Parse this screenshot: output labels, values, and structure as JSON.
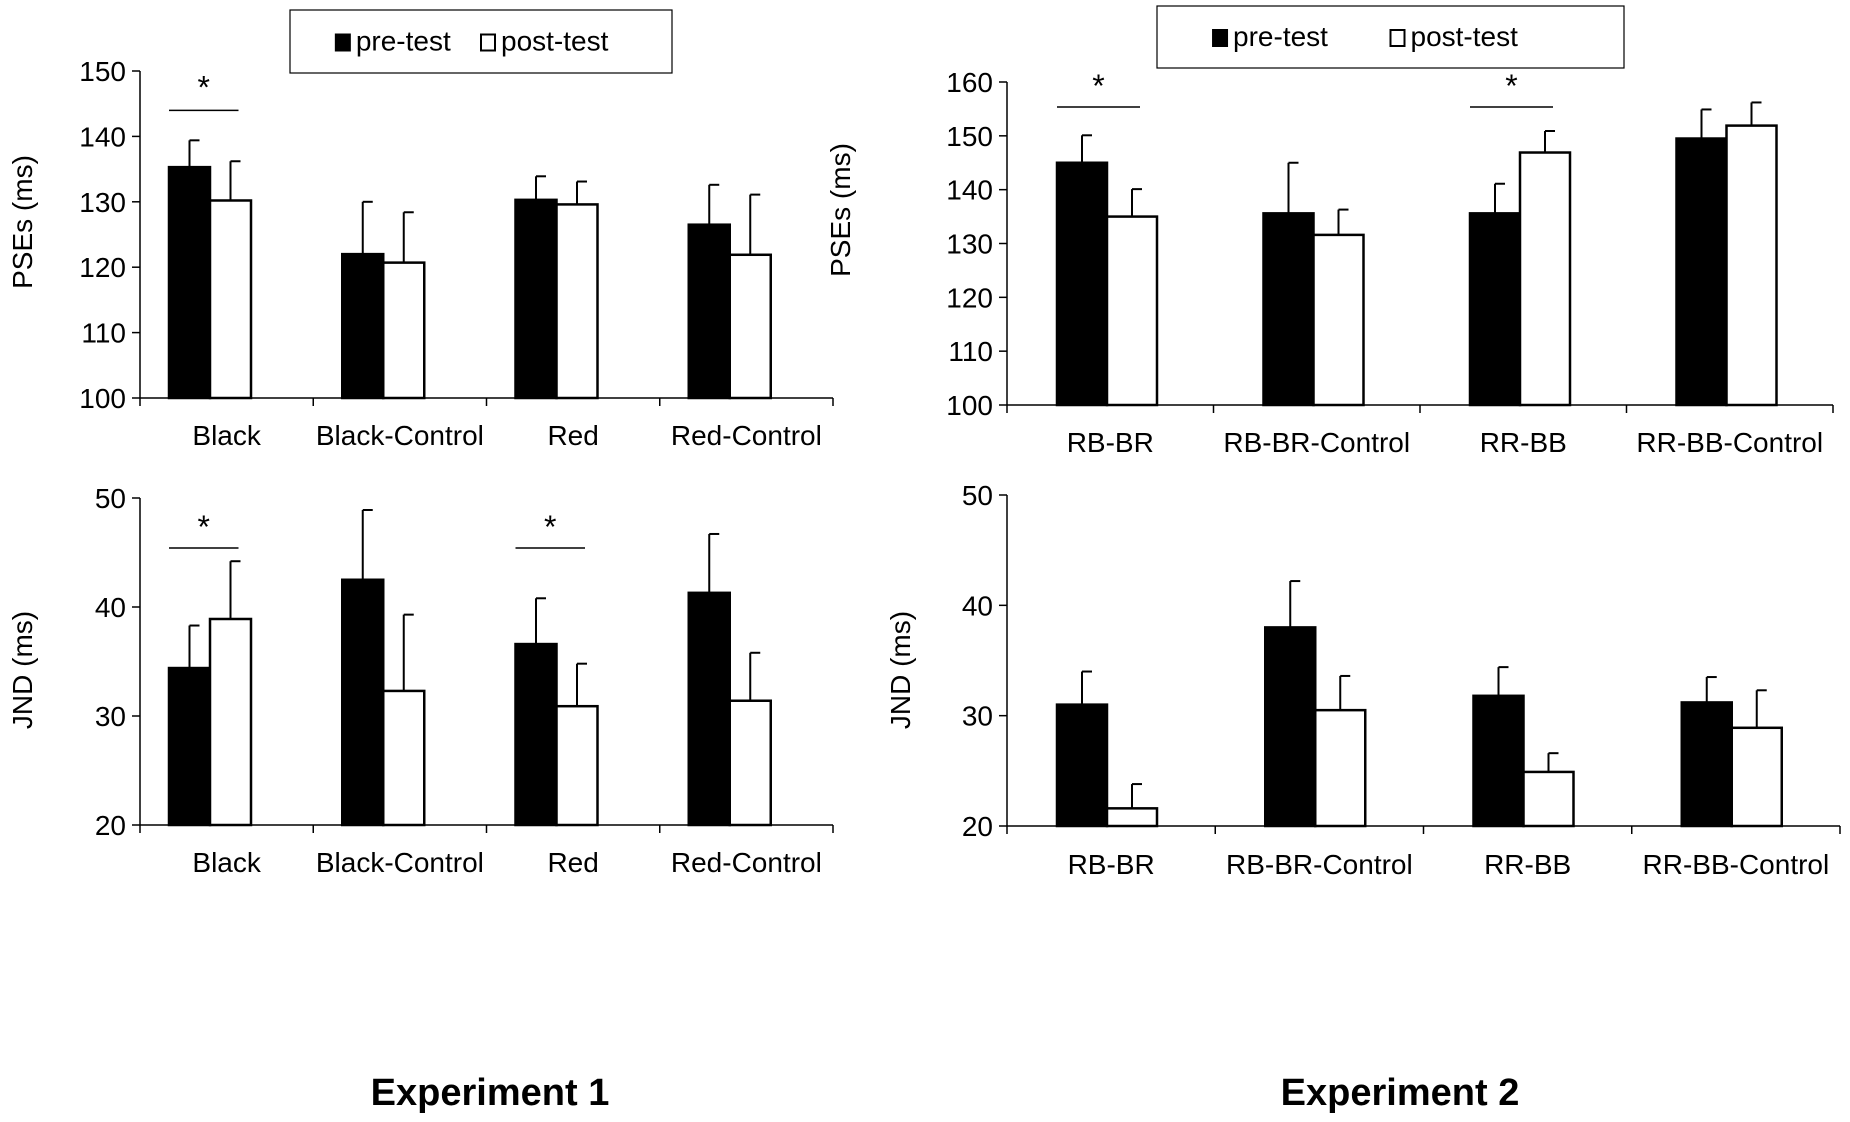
{
  "chart_data": [
    {
      "id": "exp1-pse",
      "type": "bar",
      "ylabel": "PSEs (ms)",
      "ylim": [
        100,
        150
      ],
      "yticks": [
        100,
        110,
        120,
        130,
        140,
        150
      ],
      "categories": [
        "Black",
        "Black-Control",
        "Red",
        "Red-Control"
      ],
      "legend": [
        "pre-test",
        "post-test"
      ],
      "series": [
        {
          "name": "pre-test",
          "values": [
            135.3,
            122.0,
            130.3,
            126.5
          ],
          "errors": [
            4.1,
            8.0,
            3.6,
            6.1
          ]
        },
        {
          "name": "post-test",
          "values": [
            130.2,
            120.7,
            129.6,
            121.9
          ],
          "errors": [
            6.0,
            7.7,
            3.5,
            9.2
          ]
        }
      ],
      "significance": [
        {
          "category": 0,
          "label": "*"
        }
      ]
    },
    {
      "id": "exp2-pse",
      "type": "bar",
      "ylabel": "PSEs (ms)",
      "ylim": [
        100,
        160
      ],
      "yticks": [
        100,
        110,
        120,
        130,
        140,
        150,
        160
      ],
      "categories": [
        "RB-BR",
        "RB-BR-Control",
        "RR-BB",
        "RR-BB-Control"
      ],
      "legend": [
        "pre-test",
        "post-test"
      ],
      "series": [
        {
          "name": "pre-test",
          "values": [
            145.0,
            135.6,
            135.6,
            149.5
          ],
          "errors": [
            5.1,
            9.4,
            5.5,
            5.4
          ]
        },
        {
          "name": "post-test",
          "values": [
            135.0,
            131.6,
            146.9,
            151.9
          ],
          "errors": [
            5.1,
            4.7,
            4.0,
            4.3
          ]
        }
      ],
      "significance": [
        {
          "category": 0,
          "label": "*"
        },
        {
          "category": 2,
          "label": "*"
        }
      ]
    },
    {
      "id": "exp1-jnd",
      "type": "bar",
      "ylabel": "JND (ms)",
      "ylim": [
        20,
        50
      ],
      "yticks": [
        20,
        30,
        40,
        50
      ],
      "categories": [
        "Black",
        "Black-Control",
        "Red",
        "Red-Control"
      ],
      "legend": [],
      "series": [
        {
          "name": "pre-test",
          "values": [
            34.4,
            42.5,
            36.6,
            41.3
          ],
          "errors": [
            3.9,
            6.4,
            4.2,
            5.4
          ]
        },
        {
          "name": "post-test",
          "values": [
            38.9,
            32.3,
            30.9,
            31.4
          ],
          "errors": [
            5.3,
            7.0,
            3.9,
            4.4
          ]
        }
      ],
      "significance": [
        {
          "category": 0,
          "label": "*"
        },
        {
          "category": 2,
          "label": "*"
        }
      ]
    },
    {
      "id": "exp2-jnd",
      "type": "bar",
      "ylabel": "JND (ms)",
      "ylim": [
        20,
        50
      ],
      "yticks": [
        20,
        30,
        40,
        50
      ],
      "categories": [
        "RB-BR",
        "RB-BR-Control",
        "RR-BB",
        "RR-BB-Control"
      ],
      "legend": [],
      "series": [
        {
          "name": "pre-test",
          "values": [
            31.0,
            38.0,
            31.8,
            31.2
          ],
          "errors": [
            3.0,
            4.2,
            2.6,
            2.3
          ]
        },
        {
          "name": "post-test",
          "values": [
            21.6,
            30.5,
            24.9,
            28.9
          ],
          "errors": [
            2.2,
            3.1,
            1.7,
            3.4
          ]
        }
      ],
      "significance": []
    }
  ],
  "experiment_labels": [
    "Experiment 1",
    "Experiment 2"
  ]
}
